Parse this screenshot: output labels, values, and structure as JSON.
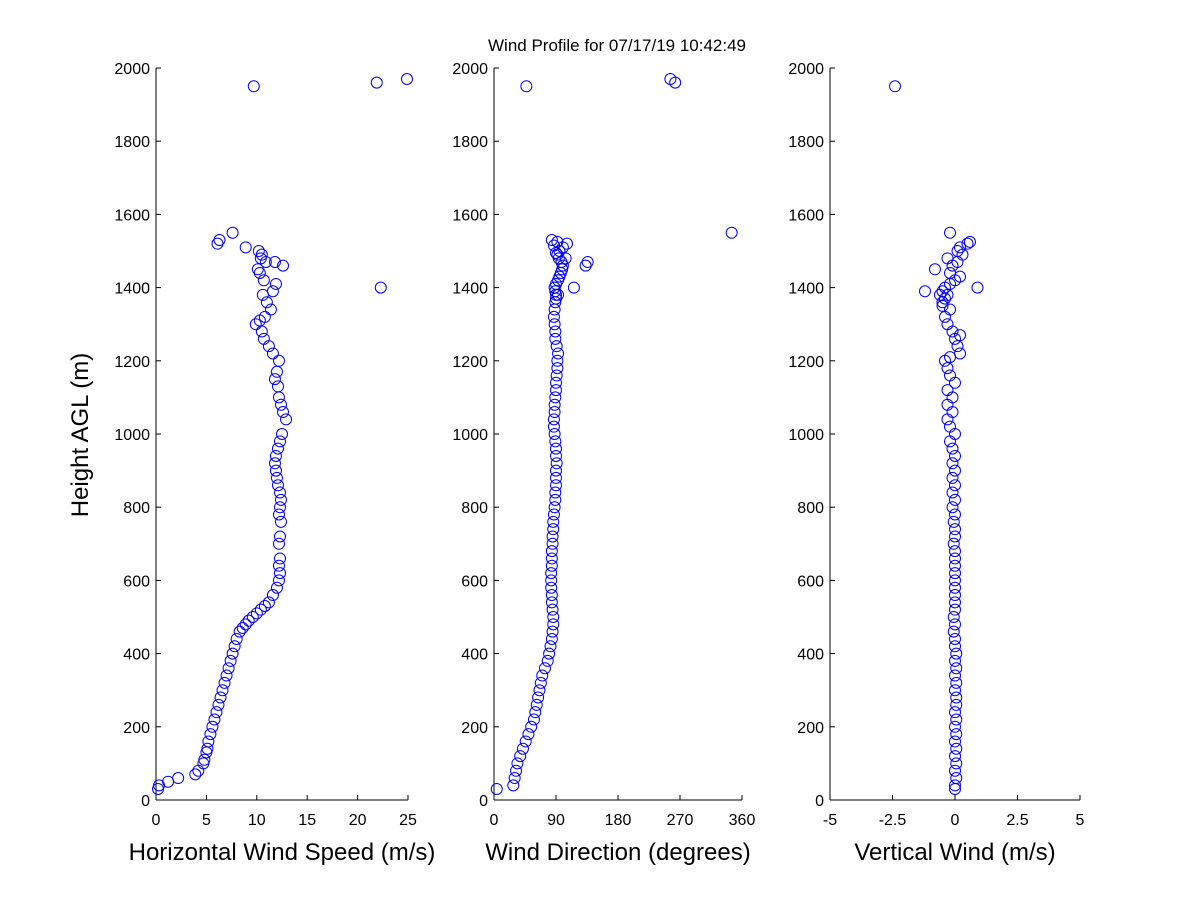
{
  "figure": {
    "title": "Wind Profile for  07/17/19 10:42:49",
    "ylabel": "Height AGL (m)",
    "marker_color": "#0000ff"
  },
  "chart_data": [
    {
      "type": "scatter",
      "xlabel": "Horizontal Wind Speed (m/s)",
      "ylabel": "Height AGL (m)",
      "xlim": [
        0,
        25
      ],
      "ylim": [
        0,
        2000
      ],
      "xticks": [
        0,
        5,
        10,
        15,
        20,
        25
      ],
      "xtick_labels": [
        "0",
        "5",
        "10",
        "15",
        "20",
        "25"
      ],
      "yticks": [
        0,
        200,
        400,
        600,
        800,
        1000,
        1200,
        1400,
        1600,
        1800,
        2000
      ],
      "ytick_labels": [
        "0",
        "200",
        "400",
        "600",
        "800",
        "1000",
        "1200",
        "1400",
        "1600",
        "1800",
        "2000"
      ],
      "grid": false,
      "marker": "open-circle",
      "x": [
        0.2,
        0.3,
        1.2,
        2.2,
        3.9,
        4.2,
        4.7,
        4.8,
        5.0,
        5.1,
        5.2,
        5.4,
        5.6,
        5.8,
        6.0,
        6.2,
        6.4,
        6.6,
        6.8,
        7.0,
        7.2,
        7.4,
        7.6,
        7.8,
        8.0,
        8.3,
        8.6,
        8.9,
        9.2,
        9.6,
        10.0,
        10.4,
        10.8,
        11.2,
        11.6,
        12.0,
        12.2,
        12.3,
        12.2,
        12.3,
        12.2,
        12.3,
        12.4,
        12.2,
        12.3,
        12.4,
        12.3,
        12.1,
        12.0,
        11.9,
        11.8,
        11.9,
        12.1,
        12.3,
        12.5,
        12.9,
        12.6,
        12.4,
        12.2,
        12.1,
        11.8,
        12.0,
        12.2,
        11.6,
        11.2,
        10.7,
        10.5,
        9.9,
        10.3,
        10.8,
        11.4,
        11.0,
        10.6,
        11.6,
        11.9,
        10.7,
        10.3,
        10.1,
        10.9,
        10.4,
        11.8,
        12.6,
        10.5,
        10.2,
        8.9,
        6.1,
        6.3,
        7.6,
        22.3,
        9.7,
        21.9,
        24.9
      ],
      "y": [
        30,
        40,
        50,
        60,
        70,
        80,
        100,
        110,
        130,
        140,
        160,
        180,
        200,
        220,
        240,
        260,
        280,
        300,
        320,
        340,
        360,
        380,
        400,
        420,
        440,
        460,
        470,
        480,
        490,
        500,
        510,
        520,
        530,
        540,
        560,
        580,
        600,
        620,
        640,
        660,
        700,
        720,
        760,
        780,
        800,
        820,
        840,
        860,
        880,
        900,
        920,
        940,
        960,
        980,
        1000,
        1040,
        1060,
        1080,
        1100,
        1130,
        1150,
        1170,
        1200,
        1220,
        1240,
        1260,
        1280,
        1300,
        1310,
        1320,
        1340,
        1360,
        1380,
        1390,
        1410,
        1420,
        1440,
        1450,
        1470,
        1480,
        1470,
        1460,
        1490,
        1500,
        1510,
        1520,
        1530,
        1550,
        1400,
        1950,
        1960,
        1970
      ]
    },
    {
      "type": "scatter",
      "xlabel": "Wind Direction (degrees)",
      "ylabel": "",
      "xlim": [
        0,
        360
      ],
      "ylim": [
        0,
        2000
      ],
      "xticks": [
        0,
        90,
        180,
        270,
        360
      ],
      "xtick_labels": [
        "0",
        "90",
        "180",
        "270",
        "360"
      ],
      "yticks": [
        0,
        200,
        400,
        600,
        800,
        1000,
        1200,
        1400,
        1600,
        1800,
        2000
      ],
      "ytick_labels": [
        "0",
        "200",
        "400",
        "600",
        "800",
        "1000",
        "1200",
        "1400",
        "1600",
        "1800",
        "2000"
      ],
      "grid": false,
      "marker": "open-circle",
      "x": [
        4,
        28,
        30,
        32,
        34,
        38,
        42,
        46,
        50,
        54,
        58,
        60,
        62,
        64,
        66,
        68,
        70,
        74,
        78,
        80,
        82,
        84,
        85,
        86,
        86,
        85,
        84,
        84,
        83,
        83,
        83,
        84,
        84,
        84,
        85,
        85,
        86,
        86,
        87,
        88,
        89,
        89,
        90,
        90,
        90,
        91,
        90,
        90,
        89,
        88,
        87,
        87,
        88,
        88,
        89,
        90,
        90,
        91,
        92,
        92,
        93,
        91,
        89,
        89,
        88,
        87,
        88,
        89,
        90,
        90,
        89,
        88,
        90,
        93,
        95,
        97,
        99,
        100,
        98,
        94,
        92,
        95,
        100,
        106,
        92,
        116,
        93,
        133,
        136,
        87,
        84,
        90,
        104,
        345,
        47,
        256,
        263
      ],
      "y": [
        30,
        40,
        60,
        80,
        100,
        120,
        140,
        160,
        180,
        200,
        220,
        240,
        260,
        280,
        300,
        320,
        340,
        360,
        380,
        400,
        420,
        440,
        460,
        480,
        500,
        520,
        540,
        560,
        580,
        600,
        620,
        640,
        660,
        680,
        700,
        720,
        740,
        760,
        780,
        800,
        820,
        840,
        860,
        880,
        900,
        920,
        940,
        960,
        980,
        1000,
        1020,
        1040,
        1060,
        1080,
        1100,
        1120,
        1140,
        1160,
        1180,
        1200,
        1220,
        1240,
        1260,
        1280,
        1300,
        1320,
        1340,
        1360,
        1370,
        1380,
        1390,
        1400,
        1410,
        1420,
        1430,
        1440,
        1450,
        1460,
        1470,
        1480,
        1490,
        1500,
        1510,
        1520,
        1525,
        1400,
        1380,
        1460,
        1470,
        1515,
        1530,
        1495,
        1480,
        1550,
        1950,
        1970,
        1960
      ]
    },
    {
      "type": "scatter",
      "xlabel": "Vertical Wind (m/s)",
      "ylabel": "",
      "xlim": [
        -5,
        5
      ],
      "ylim": [
        0,
        2000
      ],
      "xticks": [
        -5,
        -2.5,
        0,
        2.5,
        5
      ],
      "xtick_labels": [
        "-5",
        "-2.5",
        "0",
        "2.5",
        "5"
      ],
      "yticks": [
        0,
        200,
        400,
        600,
        800,
        1000,
        1200,
        1400,
        1600,
        1800,
        2000
      ],
      "ytick_labels": [
        "0",
        "200",
        "400",
        "600",
        "800",
        "1000",
        "1200",
        "1400",
        "1600",
        "1800",
        "2000"
      ],
      "grid": false,
      "marker": "open-circle",
      "x": [
        0.0,
        0.0,
        0.05,
        0.0,
        0.05,
        0.0,
        0.05,
        0.0,
        0.05,
        0.0,
        0.05,
        0.0,
        0.05,
        0.05,
        0.0,
        0.05,
        0.0,
        0.05,
        0.0,
        0.05,
        0.0,
        0.0,
        -0.05,
        0.0,
        -0.05,
        0.0,
        0.0,
        0.0,
        0.0,
        0.0,
        0.0,
        0.0,
        0.0,
        0.0,
        -0.05,
        0.0,
        0.0,
        -0.05,
        0.0,
        -0.1,
        0.0,
        -0.1,
        0.0,
        -0.1,
        0.0,
        -0.1,
        0.0,
        -0.1,
        -0.2,
        0.0,
        -0.2,
        -0.3,
        -0.1,
        -0.3,
        -0.1,
        -0.3,
        0.0,
        -0.2,
        -0.3,
        -0.4,
        -0.2,
        0.2,
        0.1,
        0.0,
        0.2,
        -0.1,
        -0.3,
        -0.4,
        -0.2,
        -0.5,
        -0.5,
        -0.4,
        -0.6,
        -0.5,
        -0.3,
        -0.4,
        -0.2,
        -1.2,
        0.9,
        0.0,
        0.2,
        -0.2,
        -0.1,
        -0.8,
        0.1,
        -0.3,
        0.3,
        0.1,
        0.2,
        0.5,
        0.6,
        -0.2,
        -2.4
      ],
      "y": [
        30,
        40,
        60,
        80,
        100,
        120,
        140,
        160,
        180,
        200,
        220,
        240,
        260,
        280,
        300,
        320,
        340,
        360,
        380,
        400,
        420,
        440,
        460,
        480,
        500,
        520,
        540,
        560,
        580,
        600,
        620,
        640,
        660,
        680,
        700,
        720,
        740,
        760,
        780,
        800,
        820,
        840,
        860,
        880,
        900,
        920,
        940,
        960,
        980,
        1000,
        1020,
        1040,
        1060,
        1080,
        1100,
        1120,
        1140,
        1160,
        1180,
        1200,
        1210,
        1220,
        1240,
        1260,
        1270,
        1280,
        1300,
        1320,
        1340,
        1350,
        1360,
        1370,
        1380,
        1390,
        1380,
        1400,
        1410,
        1390,
        1400,
        1420,
        1430,
        1440,
        1460,
        1450,
        1470,
        1480,
        1490,
        1500,
        1510,
        1520,
        1525,
        1550,
        1950
      ]
    }
  ]
}
